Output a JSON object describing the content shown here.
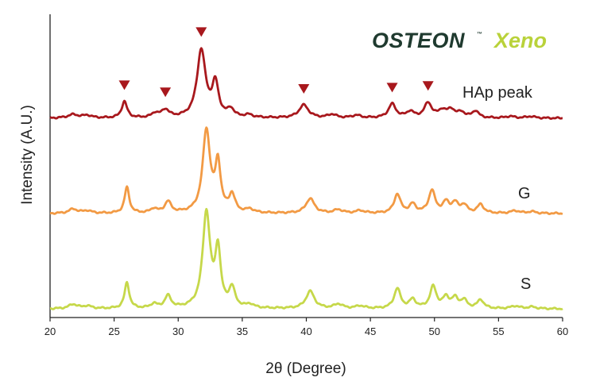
{
  "logo": {
    "primary": "OSTEON",
    "tm": "™",
    "secondary": "Xeno"
  },
  "chart_data": {
    "type": "line",
    "title": "",
    "xlabel": "2θ (Degree)",
    "ylabel": "Intensity (A.U.)",
    "xlim": [
      20,
      60
    ],
    "ylim": [
      0,
      3.5
    ],
    "x_ticks": [
      "20",
      "25",
      "30",
      "35",
      "40",
      "45",
      "50",
      "55",
      "60"
    ],
    "grid": false,
    "legend": "none",
    "series": [
      {
        "name": "HAp peak",
        "color": "#a8181d",
        "offset": 2.3,
        "peaks": [
          [
            21.8,
            0.04,
            0.5
          ],
          [
            22.9,
            0.03,
            0.4
          ],
          [
            25.8,
            0.19,
            0.25
          ],
          [
            28.2,
            0.05,
            0.3
          ],
          [
            29.0,
            0.09,
            0.35
          ],
          [
            31.8,
            0.78,
            0.4
          ],
          [
            32.9,
            0.38,
            0.3
          ],
          [
            34.1,
            0.09,
            0.3
          ],
          [
            35.5,
            0.03,
            0.4
          ],
          [
            39.8,
            0.15,
            0.45
          ],
          [
            42.0,
            0.04,
            0.4
          ],
          [
            43.9,
            0.03,
            0.4
          ],
          [
            46.7,
            0.16,
            0.35
          ],
          [
            48.1,
            0.07,
            0.35
          ],
          [
            49.5,
            0.17,
            0.35
          ],
          [
            50.6,
            0.08,
            0.35
          ],
          [
            51.3,
            0.09,
            0.35
          ],
          [
            52.1,
            0.06,
            0.35
          ],
          [
            53.2,
            0.08,
            0.3
          ],
          [
            55.9,
            0.02,
            0.4
          ],
          [
            57.5,
            0.02,
            0.4
          ]
        ],
        "markers": [
          25.8,
          29.0,
          31.8,
          39.8,
          46.7,
          49.5
        ],
        "marker_color": "#a8181d"
      },
      {
        "name": "G",
        "color": "#f29a44",
        "offset": 1.2,
        "peaks": [
          [
            21.8,
            0.05,
            0.4
          ],
          [
            22.9,
            0.03,
            0.4
          ],
          [
            26.0,
            0.3,
            0.22
          ],
          [
            28.1,
            0.05,
            0.3
          ],
          [
            29.2,
            0.13,
            0.3
          ],
          [
            32.2,
            0.95,
            0.35
          ],
          [
            33.1,
            0.55,
            0.25
          ],
          [
            34.2,
            0.2,
            0.28
          ],
          [
            35.6,
            0.04,
            0.35
          ],
          [
            40.3,
            0.17,
            0.4
          ],
          [
            42.5,
            0.04,
            0.4
          ],
          [
            44.2,
            0.03,
            0.4
          ],
          [
            47.1,
            0.22,
            0.3
          ],
          [
            48.3,
            0.1,
            0.3
          ],
          [
            49.8,
            0.26,
            0.3
          ],
          [
            50.9,
            0.12,
            0.3
          ],
          [
            51.6,
            0.11,
            0.3
          ],
          [
            52.3,
            0.09,
            0.3
          ],
          [
            53.6,
            0.1,
            0.3
          ],
          [
            56.3,
            0.03,
            0.4
          ],
          [
            57.6,
            0.02,
            0.4
          ]
        ],
        "markers": [],
        "marker_color": ""
      },
      {
        "name": "S",
        "color": "#c6d84a",
        "offset": 0.1,
        "peaks": [
          [
            21.8,
            0.05,
            0.4
          ],
          [
            22.9,
            0.03,
            0.4
          ],
          [
            26.0,
            0.3,
            0.22
          ],
          [
            28.1,
            0.05,
            0.3
          ],
          [
            29.2,
            0.14,
            0.3
          ],
          [
            32.2,
            1.1,
            0.35
          ],
          [
            33.1,
            0.65,
            0.25
          ],
          [
            34.2,
            0.22,
            0.28
          ],
          [
            35.6,
            0.04,
            0.35
          ],
          [
            40.3,
            0.2,
            0.4
          ],
          [
            42.5,
            0.05,
            0.4
          ],
          [
            44.2,
            0.03,
            0.4
          ],
          [
            47.1,
            0.23,
            0.3
          ],
          [
            48.3,
            0.1,
            0.3
          ],
          [
            49.9,
            0.25,
            0.3
          ],
          [
            50.9,
            0.12,
            0.3
          ],
          [
            51.6,
            0.11,
            0.3
          ],
          [
            52.3,
            0.09,
            0.3
          ],
          [
            53.6,
            0.1,
            0.3
          ],
          [
            56.3,
            0.03,
            0.4
          ],
          [
            57.6,
            0.02,
            0.4
          ]
        ],
        "markers": [],
        "marker_color": ""
      }
    ]
  }
}
